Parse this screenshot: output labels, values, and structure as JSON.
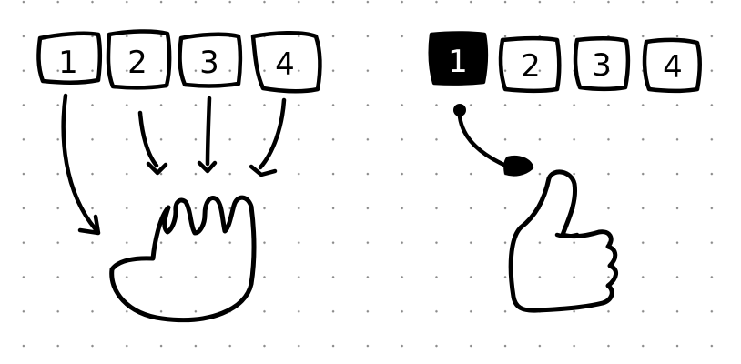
{
  "diagram": {
    "left_group": {
      "keys": [
        "1",
        "2",
        "3",
        "4"
      ]
    },
    "right_group": {
      "keys": [
        "1",
        "2",
        "3",
        "4"
      ],
      "highlighted_key": "1"
    },
    "colors": {
      "ink": "#000000",
      "paper": "#ffffff",
      "dots": "#8a8a8a"
    },
    "icons": {
      "left": "open-hand-icon",
      "right": "thumbs-up-icon"
    }
  }
}
